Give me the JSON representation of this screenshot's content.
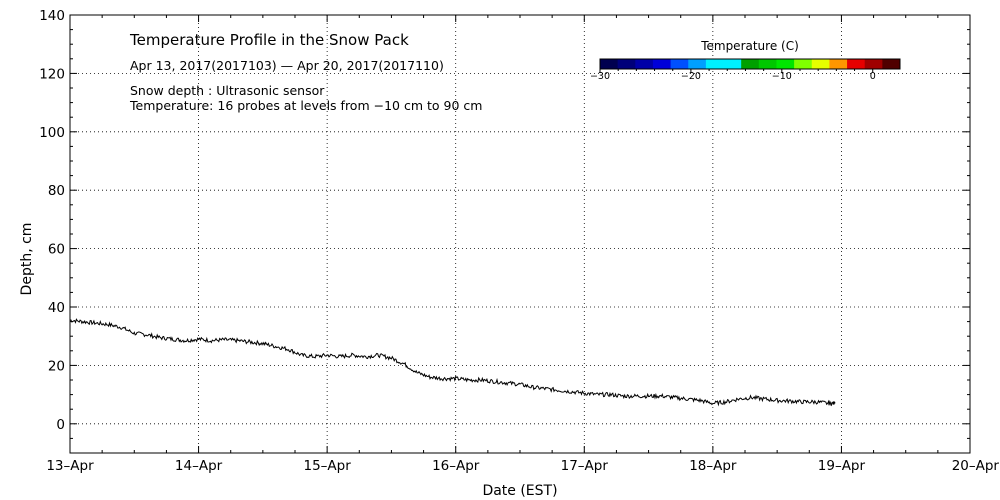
{
  "chart_data": {
    "type": "line",
    "title": "Temperature Profile in the Snow Pack",
    "subtitle": "Apr 13, 2017(2017103) — Apr 20, 2017(2017110)",
    "notes": [
      "Snow depth : Ultrasonic sensor",
      "Temperature: 16 probes at levels from −10 cm to 90 cm"
    ],
    "xlabel": "Date (EST)",
    "ylabel": "Depth, cm",
    "x_ticks": [
      "13–Apr",
      "14–Apr",
      "15–Apr",
      "16–Apr",
      "17–Apr",
      "18–Apr",
      "19–Apr",
      "20–Apr"
    ],
    "xlim": [
      0,
      7
    ],
    "ylim": [
      -10,
      140
    ],
    "y_ticks": [
      "0",
      "20",
      "40",
      "60",
      "80",
      "100",
      "120",
      "140"
    ],
    "grid": true,
    "colorbar": {
      "title": "Temperature (C)",
      "tick_values": [
        -30,
        -20,
        -10,
        0
      ],
      "tick_labels": [
        "−30",
        "−20",
        "−10",
        "0"
      ],
      "range": [
        -30,
        3
      ],
      "colors": [
        "#00004f",
        "#00007a",
        "#0000a8",
        "#0000d9",
        "#0050ff",
        "#00a0ff",
        "#00f0ff",
        "#00f0ff",
        "#00a000",
        "#00c800",
        "#00e600",
        "#80ff00",
        "#e6ff00",
        "#ff9600",
        "#e60000",
        "#a00000",
        "#500000"
      ]
    },
    "series": [
      {
        "name": "Snow depth",
        "color": "#000000",
        "x": [
          0.0,
          0.1,
          0.2,
          0.3,
          0.4,
          0.5,
          0.6,
          0.7,
          0.8,
          0.9,
          1.0,
          1.1,
          1.2,
          1.3,
          1.4,
          1.5,
          1.6,
          1.7,
          1.8,
          1.9,
          2.0,
          2.1,
          2.2,
          2.3,
          2.4,
          2.5,
          2.6,
          2.7,
          2.8,
          2.9,
          3.0,
          3.1,
          3.2,
          3.3,
          3.4,
          3.5,
          3.6,
          3.7,
          3.8,
          3.9,
          4.0,
          4.1,
          4.2,
          4.3,
          4.4,
          4.5,
          4.6,
          4.7,
          4.8,
          4.9,
          5.0,
          5.1,
          5.2,
          5.3,
          5.4,
          5.5,
          5.6,
          5.7,
          5.8,
          5.9,
          5.95
        ],
        "y": [
          35.5,
          35.0,
          34.5,
          34.0,
          33.0,
          31.0,
          30.5,
          29.5,
          29.0,
          28.5,
          29.0,
          28.5,
          28.8,
          28.5,
          28.0,
          27.5,
          26.5,
          25.5,
          23.5,
          23.0,
          23.5,
          23.0,
          23.5,
          23.0,
          23.5,
          22.5,
          20.5,
          17.5,
          16.0,
          15.5,
          15.5,
          15.0,
          15.0,
          14.5,
          14.0,
          13.5,
          12.5,
          12.0,
          11.5,
          11.0,
          10.5,
          10.0,
          10.0,
          9.5,
          9.5,
          9.5,
          9.5,
          9.0,
          8.5,
          8.0,
          7.0,
          7.5,
          8.5,
          9.0,
          8.5,
          8.0,
          7.8,
          7.5,
          7.5,
          7.0,
          7.0
        ]
      }
    ]
  }
}
